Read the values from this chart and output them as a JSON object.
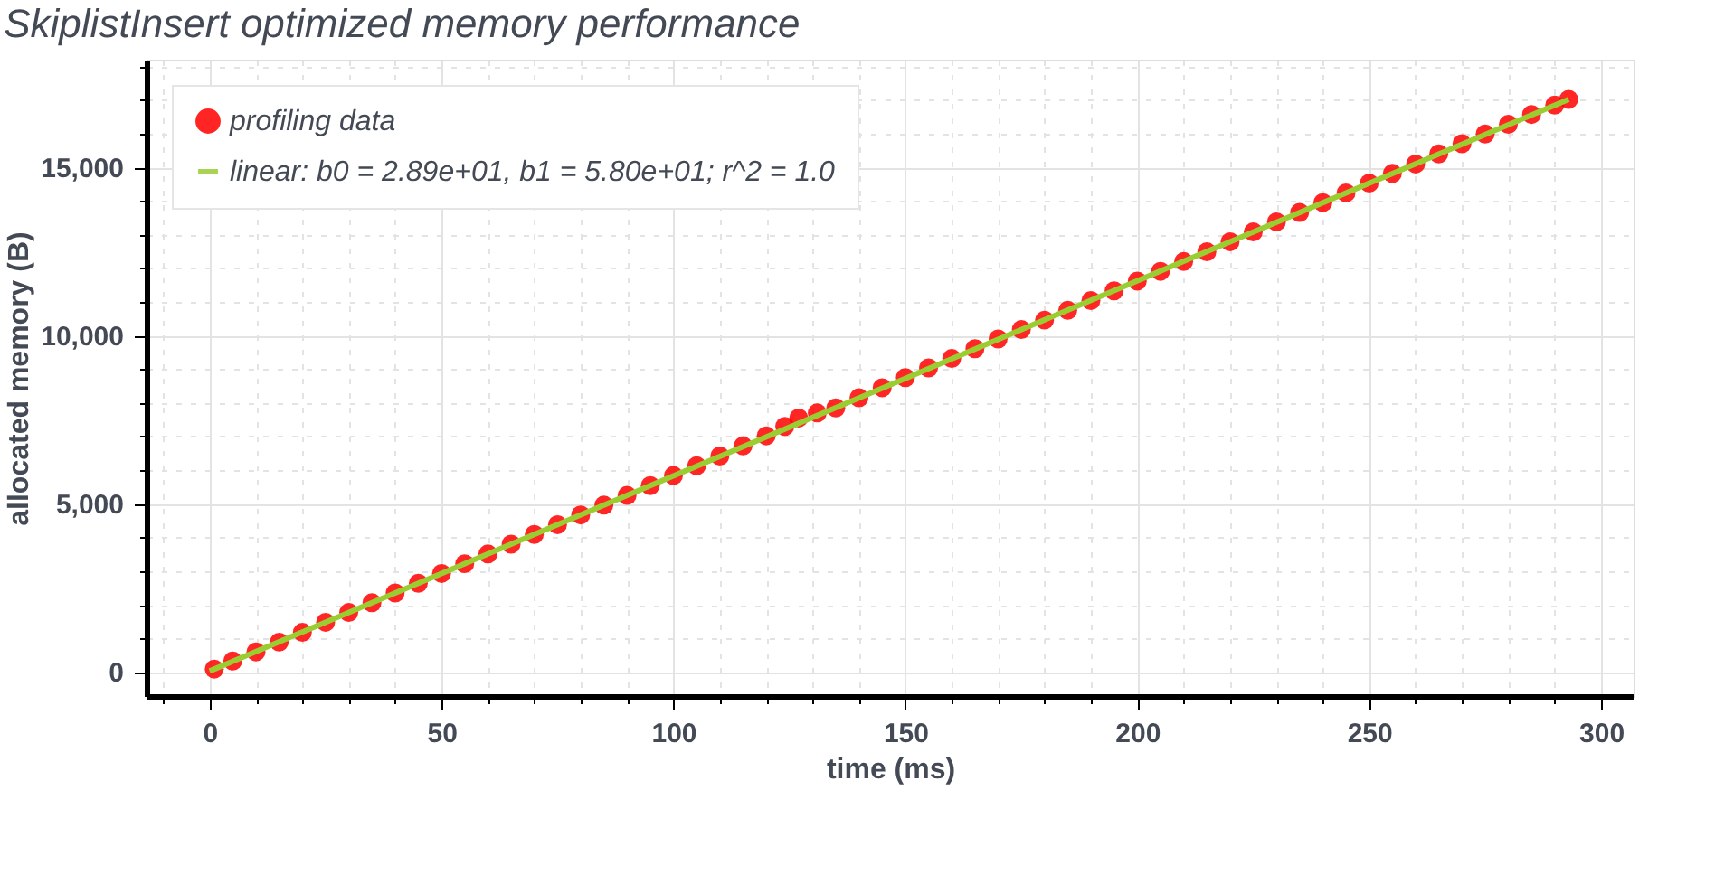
{
  "chart_data": {
    "type": "scatter",
    "title": "SkiplistInsert optimized memory performance",
    "xlabel": "time (ms)",
    "ylabel": "allocated memory (B)",
    "xlim": [
      -13.6,
      307
    ],
    "ylim": [
      -712,
      18200
    ],
    "xticks": [
      {
        "value": -10,
        "label": null
      },
      0,
      {
        "value": 10,
        "label": null
      },
      {
        "value": 20,
        "label": null
      },
      {
        "value": 30,
        "label": null
      },
      {
        "value": 40,
        "label": null
      },
      50,
      {
        "value": 60,
        "label": null
      },
      {
        "value": 70,
        "label": null
      },
      {
        "value": 80,
        "label": null
      },
      {
        "value": 90,
        "label": null
      },
      100,
      {
        "value": 110,
        "label": null
      },
      {
        "value": 120,
        "label": null
      },
      {
        "value": 130,
        "label": null
      },
      {
        "value": 140,
        "label": null
      },
      150,
      {
        "value": 160,
        "label": null
      },
      {
        "value": 170,
        "label": null
      },
      {
        "value": 180,
        "label": null
      },
      {
        "value": 190,
        "label": null
      },
      200,
      {
        "value": 210,
        "label": null
      },
      {
        "value": 220,
        "label": null
      },
      {
        "value": 230,
        "label": null
      },
      {
        "value": 240,
        "label": null
      },
      250,
      {
        "value": 260,
        "label": null
      },
      {
        "value": 270,
        "label": null
      },
      {
        "value": 280,
        "label": null
      },
      {
        "value": 290,
        "label": null
      },
      300
    ],
    "yticks": [
      0,
      {
        "value": 1000,
        "label": null
      },
      {
        "value": 2000,
        "label": null
      },
      {
        "value": 3000,
        "label": null
      },
      {
        "value": 4000,
        "label": null
      },
      {
        "value": 5000,
        "label": "5,000"
      },
      {
        "value": 6000,
        "label": null
      },
      {
        "value": 7000,
        "label": null
      },
      {
        "value": 8000,
        "label": null
      },
      {
        "value": 9000,
        "label": null
      },
      {
        "value": 10000,
        "label": "10,000"
      },
      {
        "value": 11000,
        "label": null
      },
      {
        "value": 12000,
        "label": null
      },
      {
        "value": 13000,
        "label": null
      },
      {
        "value": 14000,
        "label": null
      },
      {
        "value": 15000,
        "label": "15,000"
      },
      {
        "value": 16000,
        "label": null
      },
      {
        "value": 17000,
        "label": null
      },
      {
        "value": 18000,
        "label": null
      }
    ],
    "grid": true,
    "legend": "top left",
    "series": [
      {
        "name": "profiling data",
        "marker": "circle",
        "color": "#ff0000",
        "x": [
          1,
          5,
          10,
          15,
          20,
          25,
          30,
          35,
          40,
          45,
          50,
          55,
          60,
          65,
          70,
          75,
          80,
          85,
          90,
          95,
          100,
          105,
          110,
          115,
          120,
          124,
          127,
          131,
          135,
          140,
          145,
          150,
          155,
          160,
          165,
          170,
          175,
          180,
          185,
          190,
          195,
          200,
          205,
          210,
          215,
          220,
          225,
          230,
          235,
          240,
          245,
          250,
          255,
          260,
          265,
          270,
          275,
          280,
          285,
          290,
          293
        ],
        "values": [
          90,
          330,
          600,
          890,
          1180,
          1480,
          1770,
          2060,
          2350,
          2640,
          2930,
          3220,
          3510,
          3800,
          4090,
          4380,
          4670,
          4960,
          5250,
          5540,
          5840,
          6130,
          6420,
          6720,
          7020,
          7300,
          7550,
          7700,
          7850,
          8150,
          8450,
          8750,
          9040,
          9320,
          9610,
          9900,
          10180,
          10460,
          10750,
          11040,
          11330,
          11620,
          11910,
          12200,
          12490,
          12790,
          13080,
          13380,
          13660,
          13950,
          14240,
          14530,
          14820,
          15100,
          15400,
          15700,
          15990,
          16280,
          16570,
          16850,
          17020
        ]
      },
      {
        "name": "linear: b0 = 2.89e+01, b1 = 5.80e+01; r^2 = 1.0",
        "type": "line",
        "color": "#9acd32",
        "line_style": "solid",
        "marker": "none",
        "x": [
          0,
          293
        ],
        "values": [
          30,
          17020
        ]
      }
    ]
  }
}
